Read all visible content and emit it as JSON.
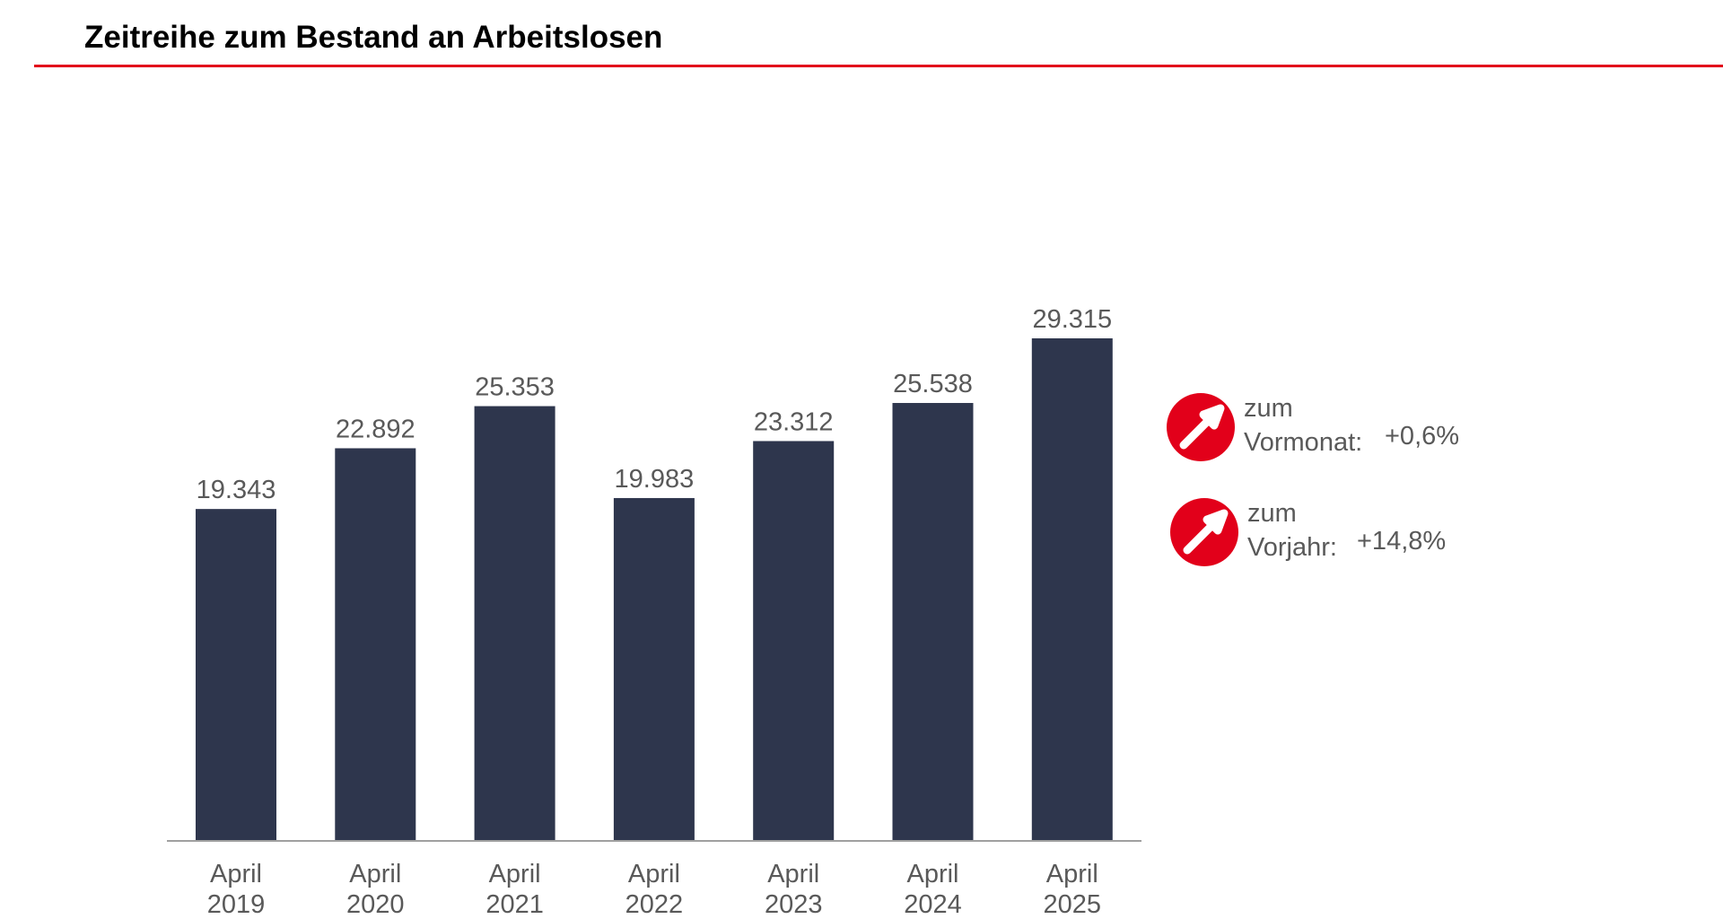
{
  "header": {
    "title": "Zeitreihe zum Bestand an Arbeitslosen"
  },
  "colors": {
    "bar": "#2e364d",
    "text": "#595959",
    "accent": "#e2001a",
    "axis": "#a0a0a0"
  },
  "chart_data": {
    "type": "bar",
    "categories": [
      "April 2019",
      "April 2020",
      "April 2021",
      "April 2022",
      "April 2023",
      "April 2024",
      "April 2025"
    ],
    "category_lines": [
      [
        "April",
        "2019"
      ],
      [
        "April",
        "2020"
      ],
      [
        "April",
        "2021"
      ],
      [
        "April",
        "2022"
      ],
      [
        "April",
        "2023"
      ],
      [
        "April",
        "2024"
      ],
      [
        "April",
        "2025"
      ]
    ],
    "values": [
      19343,
      22892,
      25353,
      19983,
      23312,
      25538,
      29315
    ],
    "value_labels": [
      "19.343",
      "22.892",
      "25.353",
      "19.983",
      "23.312",
      "25.538",
      "29.315"
    ],
    "ylim": [
      0,
      29315
    ],
    "grid": false
  },
  "kpis": [
    {
      "label_line1": "zum",
      "label_line2": "Vormonat:",
      "value": "+0,6%",
      "icon": "arrow-up-right-icon"
    },
    {
      "label_line1": "zum",
      "label_line2": "Vorjahr:",
      "value": "+14,8%",
      "icon": "arrow-up-right-icon"
    }
  ]
}
